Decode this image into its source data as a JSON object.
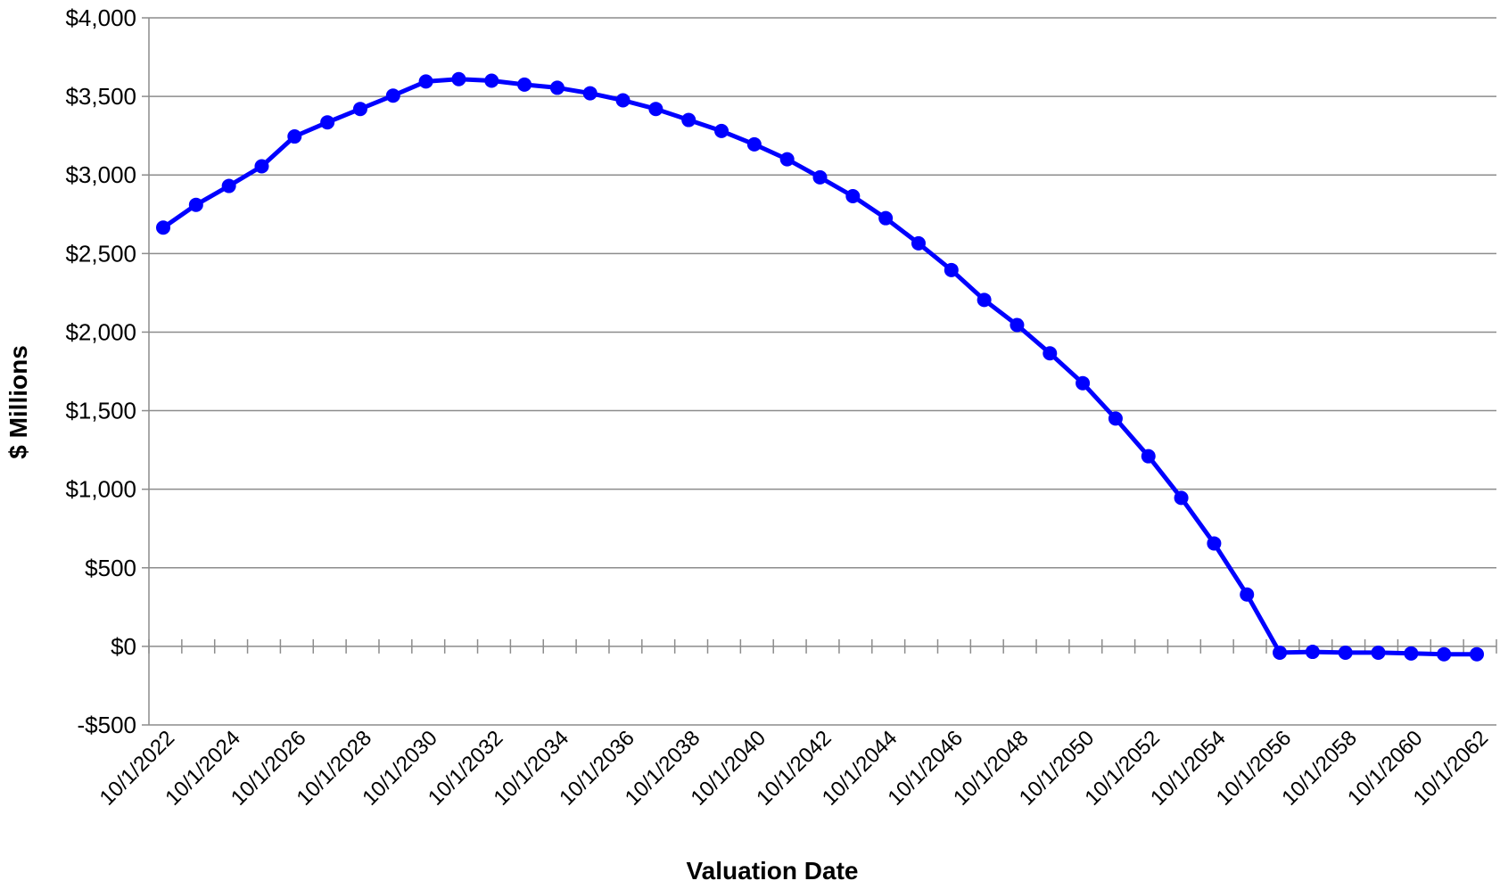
{
  "chart_data": {
    "type": "line",
    "xlabel": "Valuation Date",
    "ylabel": "$ Millions",
    "ylim": [
      -500,
      4000
    ],
    "y_ticks": [
      -500,
      0,
      500,
      1000,
      1500,
      2000,
      2500,
      3000,
      3500,
      4000
    ],
    "y_tick_labels": [
      "-$500",
      "$0",
      "$500",
      "$1,000",
      "$1,500",
      "$2,000",
      "$2,500",
      "$3,000",
      "$3,500",
      "$4,000"
    ],
    "x_tick_labels": [
      "10/1/2022",
      "10/1/2024",
      "10/1/2026",
      "10/1/2028",
      "10/1/2030",
      "10/1/2032",
      "10/1/2034",
      "10/1/2036",
      "10/1/2038",
      "10/1/2040",
      "10/1/2042",
      "10/1/2044",
      "10/1/2046",
      "10/1/2048",
      "10/1/2050",
      "10/1/2052",
      "10/1/2054",
      "10/1/2056",
      "10/1/2058",
      "10/1/2060",
      "10/1/2062"
    ],
    "grid": "horizontal",
    "line_color": "#0000FF",
    "x": [
      "10/1/2022",
      "10/1/2023",
      "10/1/2024",
      "10/1/2025",
      "10/1/2026",
      "10/1/2027",
      "10/1/2028",
      "10/1/2029",
      "10/1/2030",
      "10/1/2031",
      "10/1/2032",
      "10/1/2033",
      "10/1/2034",
      "10/1/2035",
      "10/1/2036",
      "10/1/2037",
      "10/1/2038",
      "10/1/2039",
      "10/1/2040",
      "10/1/2041",
      "10/1/2042",
      "10/1/2043",
      "10/1/2044",
      "10/1/2045",
      "10/1/2046",
      "10/1/2047",
      "10/1/2048",
      "10/1/2049",
      "10/1/2050",
      "10/1/2051",
      "10/1/2052",
      "10/1/2053",
      "10/1/2054",
      "10/1/2055",
      "10/1/2056",
      "10/1/2057",
      "10/1/2058",
      "10/1/2059",
      "10/1/2060",
      "10/1/2061",
      "10/1/2062"
    ],
    "series": [
      {
        "values": [
          2665,
          2810,
          2930,
          3055,
          3245,
          3335,
          3420,
          3505,
          3595,
          3610,
          3600,
          3575,
          3555,
          3520,
          3475,
          3420,
          3350,
          3280,
          3195,
          3100,
          2985,
          2865,
          2725,
          2565,
          2395,
          2205,
          2045,
          1865,
          1675,
          1450,
          1210,
          945,
          655,
          330,
          -40,
          -35,
          -40,
          -40,
          -45,
          -50,
          -50
        ]
      }
    ]
  }
}
